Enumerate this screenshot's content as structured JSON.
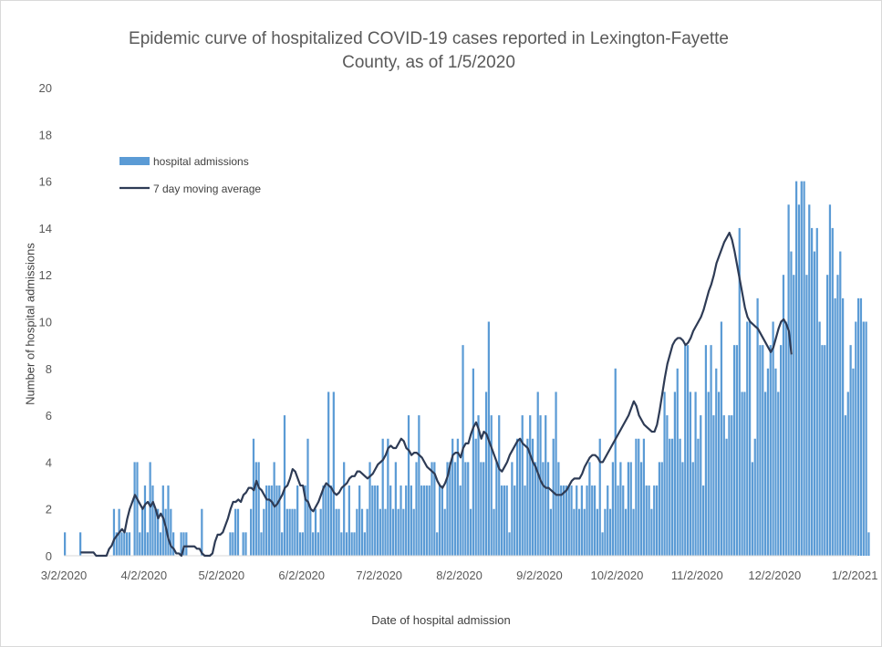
{
  "chart_data": {
    "type": "bar",
    "title_lines": [
      "Epidemic curve of hospitalized COVID-19 cases reported in Lexington-Fayette",
      "County, as of 1/5/2020"
    ],
    "xlabel": "Date of hospital admission",
    "ylabel": "Number of hospital admissions",
    "ylim": [
      0,
      20
    ],
    "y_ticks": [
      "0",
      "2",
      "4",
      "6",
      "8",
      "10",
      "12",
      "14",
      "16",
      "18",
      "20"
    ],
    "x_tick_labels": [
      "3/2/2020",
      "4/2/2020",
      "5/2/2020",
      "6/2/2020",
      "7/2/2020",
      "8/2/2020",
      "9/2/2020",
      "10/2/2020",
      "11/2/2020",
      "12/2/2020",
      "1/2/2021"
    ],
    "x_start": "3/2/2020",
    "x_end": "1/3/2021",
    "legend_position": "top-left",
    "grid": false,
    "colors": {
      "bars": "#5b9bd5",
      "line": "#2e3b55",
      "axis": "#d9d9d9"
    },
    "series": [
      {
        "name": "hospital admissions",
        "kind": "bar",
        "values": [
          1,
          0,
          0,
          0,
          0,
          0,
          1,
          0,
          0,
          0,
          0,
          0,
          0,
          0,
          0,
          0,
          0,
          0,
          0,
          2,
          1,
          2,
          1,
          1,
          1,
          1,
          0,
          4,
          4,
          1,
          2,
          3,
          1,
          4,
          3,
          2,
          2,
          1,
          3,
          2,
          3,
          2,
          1,
          0,
          0,
          1,
          1,
          1,
          0,
          0,
          0,
          0,
          0,
          2,
          0,
          0,
          0,
          0,
          0,
          0,
          0,
          0,
          0,
          0,
          1,
          1,
          2,
          2,
          0,
          1,
          1,
          0,
          2,
          5,
          4,
          4,
          1,
          2,
          3,
          3,
          3,
          4,
          3,
          3,
          1,
          6,
          2,
          2,
          2,
          2,
          3,
          1,
          1,
          3,
          5,
          2,
          1,
          2,
          1,
          2,
          3,
          3,
          7,
          3,
          7,
          2,
          2,
          1,
          4,
          1,
          3,
          1,
          1,
          2,
          3,
          2,
          1,
          2,
          4,
          3,
          3,
          3,
          2,
          5,
          2,
          5,
          3,
          2,
          4,
          2,
          3,
          2,
          3,
          6,
          3,
          2,
          4,
          6,
          3,
          3,
          3,
          3,
          4,
          4,
          1,
          3,
          3,
          2,
          4,
          4,
          5,
          4,
          5,
          3,
          9,
          4,
          4,
          2,
          8,
          5,
          6,
          4,
          4,
          7,
          10,
          6,
          2,
          4,
          6,
          3,
          3,
          3,
          1,
          4,
          3,
          5,
          5,
          6,
          3,
          5,
          6,
          5,
          4,
          7,
          6,
          4,
          6,
          4,
          2,
          5,
          7,
          4,
          3,
          3,
          3,
          3,
          3,
          2,
          3,
          2,
          3,
          2,
          3,
          4,
          3,
          3,
          2,
          5,
          1,
          2,
          3,
          2,
          4,
          8,
          3,
          4,
          3,
          2,
          4,
          4,
          2,
          5,
          5,
          4,
          5,
          3,
          3,
          2,
          3,
          3,
          4,
          4,
          7,
          6,
          5,
          5,
          7,
          8,
          5,
          4,
          9,
          9,
          7,
          4,
          7,
          5,
          6,
          3,
          9,
          7,
          9,
          6,
          8,
          7,
          10,
          6,
          5,
          6,
          6,
          9,
          9,
          14,
          7,
          7,
          10,
          10,
          4,
          5,
          11,
          9,
          9,
          7,
          8,
          9,
          10,
          8,
          7,
          9,
          12,
          10,
          15,
          13,
          12,
          16,
          15,
          16,
          16,
          12,
          15,
          14,
          13,
          14,
          10,
          9,
          9,
          12,
          15,
          14,
          11,
          12,
          13,
          11,
          6,
          7,
          9,
          8,
          10,
          11,
          11,
          10,
          10,
          1
        ],
        "notes": ""
      },
      {
        "name": "7 day moving average",
        "kind": "line",
        "start_index": 6,
        "values": [
          0.14,
          0.14,
          0.14,
          0.14,
          0.14,
          0.14,
          0.0,
          0.0,
          0.0,
          0.0,
          0.0,
          0.29,
          0.43,
          0.71,
          0.86,
          1.0,
          1.14,
          1.0,
          1.57,
          2.0,
          2.3,
          2.6,
          2.4,
          2.2,
          2.0,
          2.2,
          2.3,
          2.1,
          2.3,
          2.0,
          1.6,
          1.8,
          1.6,
          1.2,
          0.7,
          0.4,
          0.3,
          0.1,
          0.1,
          0.0,
          0.4,
          0.4,
          0.4,
          0.4,
          0.4,
          0.3,
          0.3,
          0.1,
          0.0,
          0.0,
          0.0,
          0.1,
          0.6,
          0.9,
          0.9,
          1.0,
          1.3,
          1.6,
          2.0,
          2.3,
          2.3,
          2.4,
          2.3,
          2.6,
          2.7,
          2.9,
          2.9,
          2.8,
          3.2,
          2.9,
          2.8,
          2.6,
          2.4,
          2.4,
          2.3,
          2.1,
          2.2,
          2.4,
          2.6,
          2.9,
          3.0,
          3.3,
          3.7,
          3.6,
          3.3,
          3.0,
          3.0,
          2.4,
          2.3,
          2.0,
          1.9,
          2.1,
          2.3,
          2.6,
          2.9,
          3.1,
          3.0,
          2.9,
          2.7,
          2.6,
          2.7,
          2.9,
          3.0,
          3.1,
          3.3,
          3.4,
          3.4,
          3.6,
          3.6,
          3.5,
          3.4,
          3.3,
          3.4,
          3.5,
          3.7,
          3.9,
          4.0,
          4.1,
          4.3,
          4.6,
          4.7,
          4.6,
          4.6,
          4.8,
          5.0,
          4.9,
          4.6,
          4.5,
          4.3,
          4.4,
          4.4,
          4.3,
          4.2,
          4.0,
          3.8,
          3.7,
          3.6,
          3.5,
          3.2,
          3.0,
          2.9,
          3.1,
          3.4,
          3.9,
          4.3,
          4.4,
          4.4,
          4.2,
          4.6,
          4.8,
          4.8,
          5.2,
          5.5,
          5.7,
          5.4,
          5.0,
          5.3,
          5.2,
          4.9,
          4.6,
          4.3,
          4.0,
          3.7,
          3.6,
          3.8,
          4.0,
          4.3,
          4.5,
          4.7,
          4.9,
          5.0,
          4.8,
          4.7,
          4.6,
          4.3,
          4.0,
          3.8,
          3.5,
          3.2,
          3.0,
          2.9,
          2.9,
          2.8,
          2.7,
          2.6,
          2.6,
          2.6,
          2.7,
          2.8,
          3.0,
          3.2,
          3.3,
          3.3,
          3.3,
          3.5,
          3.8,
          4.0,
          4.2,
          4.3,
          4.3,
          4.2,
          4.0,
          4.0,
          4.2,
          4.4,
          4.6,
          4.8,
          5.0,
          5.2,
          5.4,
          5.6,
          5.8,
          6.0,
          6.3,
          6.6,
          6.4,
          6.0,
          5.8,
          5.6,
          5.5,
          5.4,
          5.3,
          5.3,
          5.6,
          6.2,
          6.9,
          7.6,
          8.2,
          8.6,
          9.0,
          9.2,
          9.3,
          9.3,
          9.2,
          9.0,
          9.1,
          9.3,
          9.6,
          9.8,
          10.0,
          10.2,
          10.5,
          10.9,
          11.3,
          11.6,
          12.0,
          12.5,
          12.8,
          13.1,
          13.4,
          13.6,
          13.8,
          13.5,
          13.0,
          12.4,
          11.8,
          11.2,
          10.6,
          10.2,
          10.0,
          9.9,
          9.8,
          9.7,
          9.5,
          9.3,
          9.1,
          8.9,
          8.7,
          8.9,
          9.3,
          9.7,
          10.0,
          10.1,
          9.9,
          9.6,
          8.6
        ]
      }
    ]
  }
}
